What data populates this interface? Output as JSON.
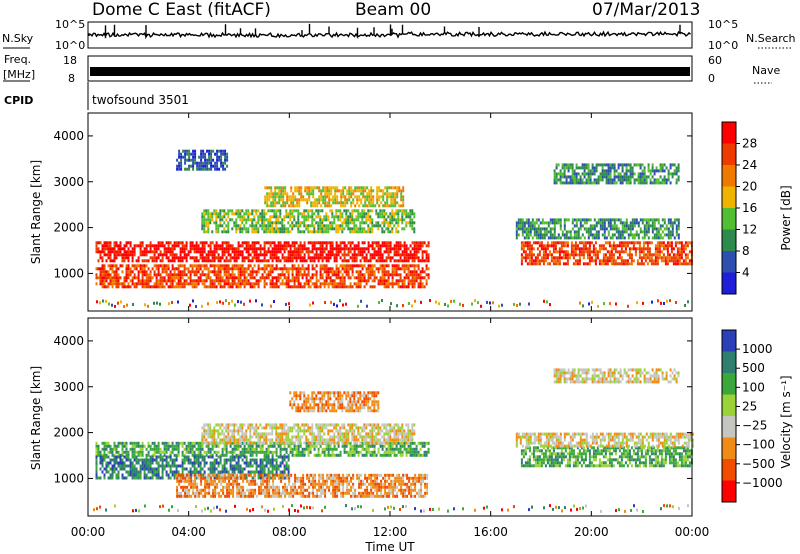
{
  "header": {
    "title": "Dome C East (fitACF)",
    "beam": "Beam 00",
    "date": "07/Mar/2013"
  },
  "top_panels": {
    "nsky_label": "N.Sky",
    "nsky_ticks": [
      "10^5",
      "10^0"
    ],
    "nsearch_label": "N.Search",
    "nsearch_ticks": [
      "10^5",
      "10^0"
    ],
    "freq_label": "Freq.",
    "freq_unit": "[MHz]",
    "freq_ticks": [
      "18",
      "8"
    ],
    "nave_label": "Nave",
    "nave_ticks": [
      "60",
      "0"
    ],
    "cpid_label": "CPID",
    "cpid_value": "twofsound 3501"
  },
  "x_axis": {
    "label": "Time UT",
    "ticks": [
      "00:00",
      "04:00",
      "08:00",
      "12:00",
      "16:00",
      "20:00",
      "00:00"
    ]
  },
  "colors": {
    "power": [
      "#1f1fd8",
      "#2d4fb0",
      "#2f8a4e",
      "#52be34",
      "#f0b400",
      "#f07a00",
      "#ee3b00",
      "#ff0000"
    ],
    "velocity": [
      "#ff0000",
      "#f04d00",
      "#f08c16",
      "#c6c6c0",
      "#9bd238",
      "#3aa83a",
      "#2f7f70",
      "#2a3fb8"
    ]
  },
  "chart_data": [
    {
      "type": "heatmap",
      "panel": "power",
      "ylabel": "Slant Range [km]",
      "yticks": [
        "1000",
        "2000",
        "3000",
        "4000"
      ],
      "ylim": [
        180,
        4500
      ],
      "xlim_hours": [
        0,
        24
      ],
      "colorbar_label": "Power [dB]",
      "colorbar_ticks": [
        "4",
        "8",
        "12",
        "16",
        "20",
        "24",
        "28"
      ],
      "regions": [
        {
          "t": [
            0.3,
            13.5
          ],
          "r": [
            1300,
            1700
          ],
          "level": 7
        },
        {
          "t": [
            0.3,
            13.5
          ],
          "r": [
            700,
            1200
          ],
          "level": 6
        },
        {
          "t": [
            4.5,
            13.0
          ],
          "r": [
            1900,
            2400
          ],
          "level": 3
        },
        {
          "t": [
            7.0,
            12.5
          ],
          "r": [
            2500,
            2900
          ],
          "level": 4
        },
        {
          "t": [
            17.2,
            24.0
          ],
          "r": [
            1200,
            1700
          ],
          "level": 6
        },
        {
          "t": [
            17.0,
            23.5
          ],
          "r": [
            1800,
            2200
          ],
          "level": 2
        },
        {
          "t": [
            18.5,
            23.5
          ],
          "r": [
            3000,
            3400
          ],
          "level": 2
        },
        {
          "t": [
            3.5,
            5.5
          ],
          "r": [
            3300,
            3700
          ],
          "level": 1
        }
      ]
    },
    {
      "type": "heatmap",
      "panel": "velocity",
      "ylabel": "Slant Range [km]",
      "yticks": [
        "1000",
        "2000",
        "3000",
        "4000"
      ],
      "ylim": [
        180,
        4500
      ],
      "xlim_hours": [
        0,
        24
      ],
      "colorbar_label": "Velocity [m s⁻¹]",
      "colorbar_ticks": [
        "1000",
        "500",
        "100",
        "25",
        "−25",
        "−100",
        "−500",
        "−1000"
      ],
      "regions": [
        {
          "t": [
            0.3,
            13.5
          ],
          "r": [
            1500,
            1800
          ],
          "level": 5
        },
        {
          "t": [
            0.3,
            8.0
          ],
          "r": [
            1000,
            1500
          ],
          "level": 6
        },
        {
          "t": [
            3.5,
            13.5
          ],
          "r": [
            600,
            1100
          ],
          "level": 2
        },
        {
          "t": [
            4.5,
            13.0
          ],
          "r": [
            1800,
            2200
          ],
          "level": 3
        },
        {
          "t": [
            8.0,
            11.5
          ],
          "r": [
            2500,
            2900
          ],
          "level": 2
        },
        {
          "t": [
            17.2,
            24.0
          ],
          "r": [
            1300,
            1700
          ],
          "level": 5
        },
        {
          "t": [
            17.0,
            24.0
          ],
          "r": [
            1700,
            2000
          ],
          "level": 3
        },
        {
          "t": [
            18.5,
            23.5
          ],
          "r": [
            3100,
            3400
          ],
          "level": 3
        }
      ]
    }
  ]
}
